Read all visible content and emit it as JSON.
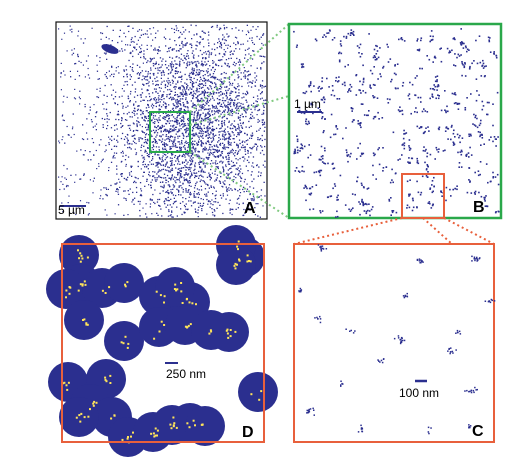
{
  "panels": {
    "A": {
      "letter": "A",
      "scale_label": "5 µm"
    },
    "B": {
      "letter": "B",
      "scale_label": "1 µm"
    },
    "C": {
      "letter": "C",
      "scale_label": "100 nm"
    },
    "D": {
      "letter": "D",
      "scale_label": "250 nm"
    }
  },
  "colors": {
    "dots": "#2b2f8f",
    "frame_green": "#2aa84a",
    "frame_orange": "#e8603c",
    "highlight": "#ffe45a",
    "panel_border": "#111111"
  }
}
